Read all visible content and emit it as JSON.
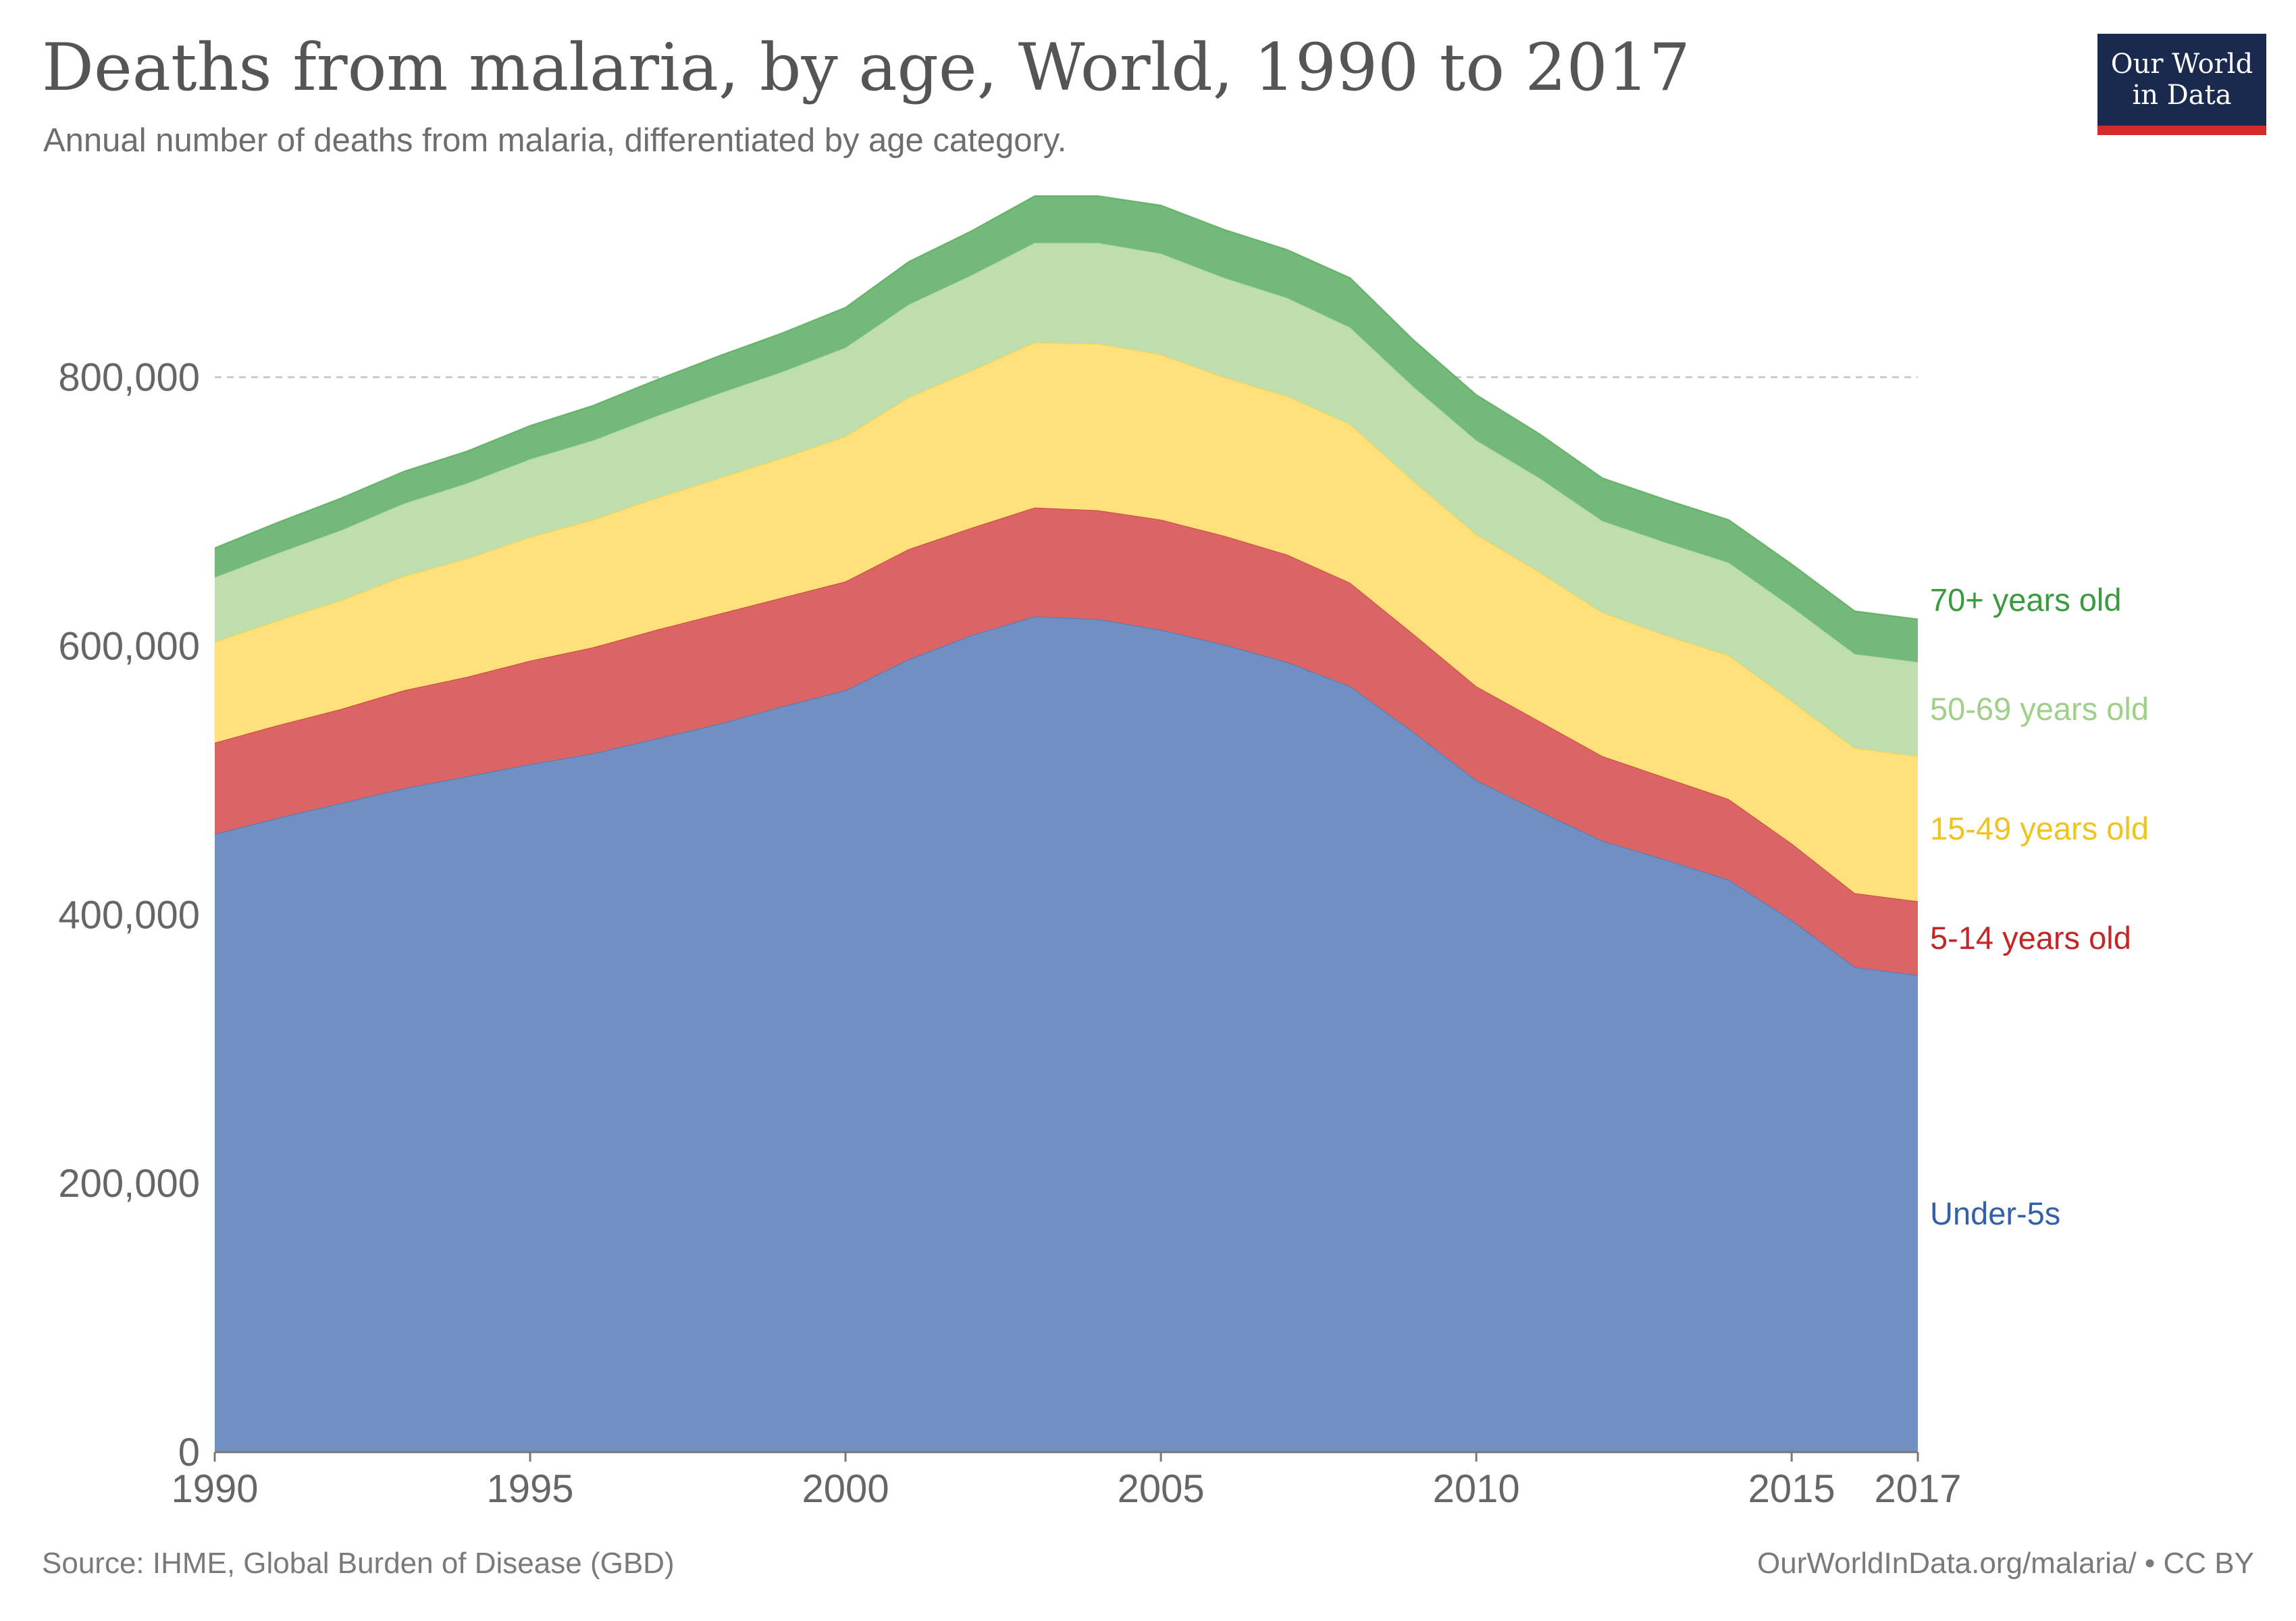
{
  "header": {
    "title": "Deaths from malaria, by age, World, 1990 to 2017",
    "subtitle": "Annual number of deaths from malaria, differentiated by age category."
  },
  "logo": {
    "line1": "Our World",
    "line2": "in Data"
  },
  "footer": {
    "source": "Source: IHME, Global Burden of Disease (GBD)",
    "credit": "OurWorldInData.org/malaria/ • CC BY"
  },
  "chart_data": {
    "type": "area",
    "stacked": true,
    "x": [
      1990,
      1991,
      1992,
      1993,
      1994,
      1995,
      1996,
      1997,
      1998,
      1999,
      2000,
      2001,
      2002,
      2003,
      2004,
      2005,
      2006,
      2007,
      2008,
      2009,
      2010,
      2011,
      2012,
      2013,
      2014,
      2015,
      2016,
      2017
    ],
    "xticks": [
      1990,
      1995,
      2000,
      2005,
      2010,
      2015,
      2017
    ],
    "yticks": [
      0,
      200000,
      400000,
      600000,
      800000
    ],
    "ytick_labels": [
      "0",
      "200,000",
      "400,000",
      "600,000",
      "800,000"
    ],
    "xlim": [
      1990,
      2017
    ],
    "ylim": [
      0,
      940000
    ],
    "grid": "horizontal dashed",
    "legend": "inline labels right of plot",
    "series": [
      {
        "name": "Under-5s",
        "color": "#7090c3",
        "label_color": "#3360a9",
        "values": [
          460000,
          472000,
          483000,
          494000,
          503000,
          512000,
          520000,
          531000,
          542000,
          555000,
          567000,
          590000,
          608000,
          622000,
          620000,
          612000,
          601000,
          588000,
          570000,
          536000,
          500000,
          477000,
          455000,
          441000,
          426000,
          396000,
          361000,
          355000
        ]
      },
      {
        "name": "5-14 years old",
        "color": "#db6565",
        "label_color": "#c42525",
        "values": [
          68000,
          69000,
          70000,
          73000,
          74000,
          77000,
          79000,
          81000,
          82000,
          81000,
          81000,
          82000,
          80000,
          81000,
          81000,
          82000,
          81000,
          80000,
          77000,
          73000,
          70000,
          67000,
          63000,
          61000,
          60000,
          57000,
          55000,
          55000
        ]
      },
      {
        "name": "15-49 years old",
        "color": "#ffe07a",
        "label_color": "#f0c420",
        "values": [
          75000,
          78000,
          81000,
          85000,
          88000,
          92000,
          95000,
          98000,
          101000,
          104000,
          108000,
          113000,
          117000,
          123000,
          124000,
          123000,
          118000,
          118000,
          118000,
          114000,
          113000,
          111000,
          107000,
          106000,
          107000,
          106000,
          108000,
          108000
        ]
      },
      {
        "name": "50-69 years old",
        "color": "#bfdead",
        "label_color": "#9fcf88",
        "values": [
          48000,
          50000,
          52000,
          54000,
          56000,
          58000,
          59000,
          61000,
          63000,
          64000,
          66000,
          69000,
          71000,
          74000,
          75000,
          75000,
          74000,
          73000,
          72000,
          70000,
          70000,
          70000,
          68000,
          69000,
          69000,
          70000,
          70000,
          70000
        ]
      },
      {
        "name": "70+ years old",
        "color": "#73b97a",
        "label_color": "#3a9a3e",
        "values": [
          22000,
          23000,
          24000,
          24000,
          24000,
          25000,
          26000,
          27000,
          28000,
          29000,
          30000,
          32000,
          33000,
          35000,
          35000,
          36000,
          36000,
          36000,
          37000,
          35000,
          34000,
          33000,
          32000,
          32000,
          32000,
          32000,
          32000,
          32000
        ]
      }
    ]
  }
}
